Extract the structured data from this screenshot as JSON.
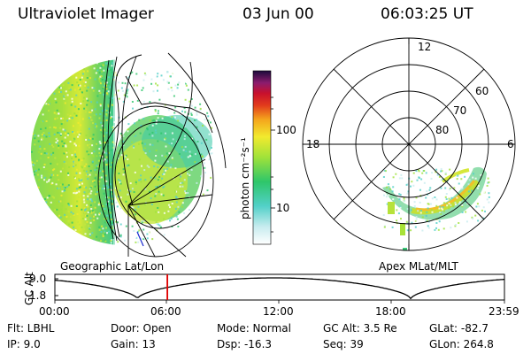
{
  "header": {
    "instrument": "Ultraviolet Imager",
    "date": "03 Jun 00",
    "time": "06:03:25 UT"
  },
  "colorbar": {
    "unit_label": "photon cm⁻²s⁻¹",
    "ticks": [
      "100",
      "10"
    ]
  },
  "left_panel": {
    "caption": "Geographic Lat/Lon"
  },
  "right_panel": {
    "caption": "Apex MLat/MLT",
    "lat_labels": [
      "60",
      "70",
      "80"
    ],
    "mlt_labels": [
      "12",
      "18",
      "6"
    ]
  },
  "timeline": {
    "ylabel": "GC Alt",
    "y_ticks": [
      "9.0",
      "1.8"
    ],
    "x_ticks": [
      "00:00",
      "06:00",
      "12:00",
      "18:00",
      "23:59"
    ],
    "marker_time": "06:00",
    "marker_color": "#e00000"
  },
  "info": {
    "flt": "Flt: LBHL",
    "ip": "IP:  9.0",
    "door": "Door: Open",
    "gain": "Gain: 13",
    "mode": "Mode: Normal",
    "dsp": "Dsp:  -16.3",
    "gc_alt": "GC Alt: 3.5 Re",
    "seq": "Seq: 39",
    "glat": "GLat: -82.7",
    "glon": "GLon: 264.8"
  }
}
